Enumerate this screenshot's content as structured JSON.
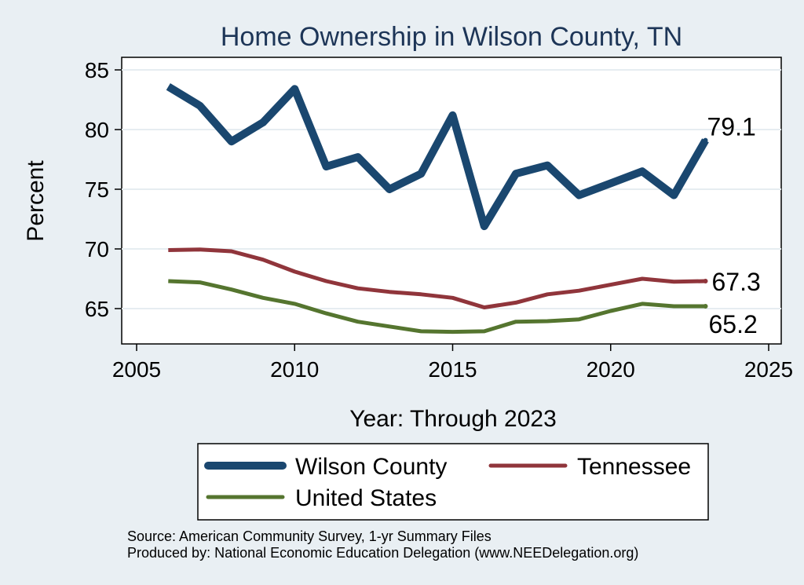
{
  "chart_data": {
    "type": "line",
    "title": "Home Ownership in Wilson County, TN",
    "xlabel": "Year: Through 2023",
    "ylabel": "Percent",
    "xlim": [
      2005,
      2025
    ],
    "ylim": [
      62.5,
      86
    ],
    "xticks": [
      2005,
      2010,
      2015,
      2020,
      2025
    ],
    "yticks": [
      65,
      70,
      75,
      80,
      85
    ],
    "grid": true,
    "legend_position": "bottom",
    "x": [
      2006,
      2007,
      2008,
      2009,
      2010,
      2011,
      2012,
      2013,
      2014,
      2015,
      2016,
      2017,
      2018,
      2019,
      2020,
      2021,
      2022,
      2023
    ],
    "series": [
      {
        "name": "Wilson County",
        "color": "#1a476f",
        "values": [
          83.6,
          82.0,
          79.0,
          80.6,
          83.4,
          76.9,
          77.7,
          75.0,
          76.3,
          81.2,
          71.9,
          76.3,
          77.0,
          74.5,
          75.5,
          76.5,
          74.5,
          79.1
        ],
        "end_label": "79.1"
      },
      {
        "name": "Tennessee",
        "color": "#90353b",
        "values": [
          69.9,
          69.95,
          69.8,
          69.1,
          68.1,
          67.3,
          66.7,
          66.4,
          66.2,
          65.9,
          65.1,
          65.5,
          66.2,
          66.5,
          67.0,
          67.5,
          67.25,
          67.3
        ],
        "end_label": "67.3"
      },
      {
        "name": "United States",
        "color": "#55752f",
        "values": [
          67.3,
          67.2,
          66.6,
          65.9,
          65.4,
          64.6,
          63.9,
          63.5,
          63.1,
          63.05,
          63.1,
          63.9,
          63.95,
          64.1,
          64.8,
          65.4,
          65.2,
          65.2
        ],
        "end_label": "65.2"
      }
    ]
  },
  "footer": {
    "source": "Source: American Community Survey, 1-yr Summary Files",
    "produced_by": "Produced by: National Economic Education Delegation (www.NEEDelegation.org)"
  }
}
